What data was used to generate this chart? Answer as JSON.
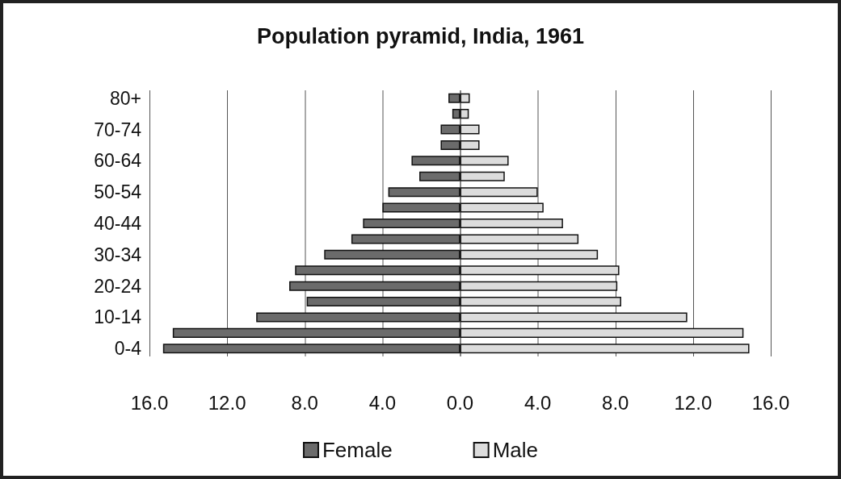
{
  "chart_data": {
    "type": "bar",
    "orientation": "horizontal",
    "stacked": true,
    "title": "Population pyramid, India, 1961",
    "categories": [
      "80+",
      null,
      "70-74",
      null,
      "60-64",
      null,
      "50-54",
      null,
      "40-44",
      null,
      "30-34",
      null,
      "20-24",
      null,
      "10-14",
      null,
      "0-4"
    ],
    "series": [
      {
        "name": "Female",
        "color": "#6b6b6b",
        "values": [
          -0.6,
          -0.4,
          -1.0,
          -1.0,
          -2.5,
          -2.1,
          -3.7,
          -4.0,
          -5.0,
          -5.6,
          -7.0,
          -8.5,
          -8.8,
          -7.9,
          -10.5,
          -14.8,
          -15.3
        ]
      },
      {
        "name": "Male",
        "color": "#dcdcdc",
        "values": [
          0.5,
          0.45,
          1.0,
          1.0,
          2.5,
          2.3,
          4.0,
          4.3,
          5.3,
          6.1,
          7.1,
          8.2,
          8.1,
          8.3,
          11.7,
          14.6,
          14.9
        ]
      }
    ],
    "xlim": [
      -16,
      16
    ],
    "xticks": [
      {
        "value": -16,
        "label": "16.0"
      },
      {
        "value": -12,
        "label": "12.0"
      },
      {
        "value": -8,
        "label": "8.0"
      },
      {
        "value": -4,
        "label": "4.0"
      },
      {
        "value": 0,
        "label": "0.0"
      },
      {
        "value": 4,
        "label": "4.0"
      },
      {
        "value": 8,
        "label": "8.0"
      },
      {
        "value": 12,
        "label": "12.0"
      },
      {
        "value": 16,
        "label": "16.0"
      }
    ],
    "grid": "x",
    "legend": "bottom"
  }
}
